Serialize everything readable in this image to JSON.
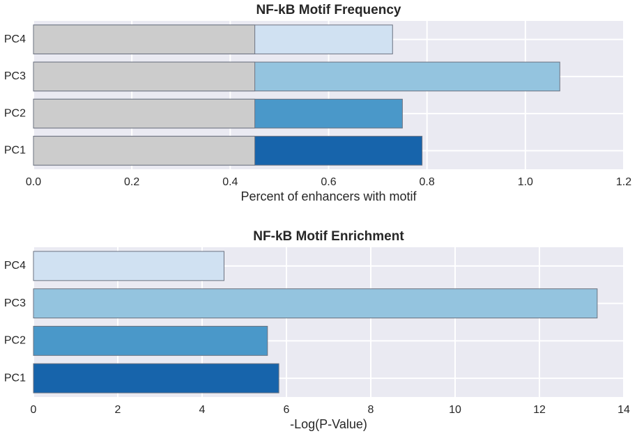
{
  "chart_data": [
    {
      "type": "bar",
      "orientation": "horizontal",
      "title": "NF-kB Motif Frequency",
      "x_label": "Percent of enhancers with motif",
      "categories": [
        "PC1",
        "PC2",
        "PC3",
        "PC4"
      ],
      "series": [
        {
          "colors": [
            "#1764ab",
            "#4a98c9",
            "#94c4df",
            "#d0e1f2"
          ],
          "values": [
            0.79,
            0.75,
            1.07,
            0.73
          ]
        },
        {
          "color": "#cccccc",
          "values": [
            0.45,
            0.45,
            0.45,
            0.45
          ]
        }
      ],
      "xlim": [
        0,
        1.2
      ],
      "xticks": [
        {
          "value": 0,
          "label": "0.0"
        },
        0.2,
        0.4,
        0.6,
        0.8,
        {
          "value": 1,
          "label": "1.0"
        },
        1.2
      ],
      "grid": true
    },
    {
      "type": "bar",
      "orientation": "horizontal",
      "title": "NF-kB Motif Enrichment",
      "x_label": "-Log(P-Value)",
      "categories": [
        "PC1",
        "PC2",
        "PC3",
        "PC4"
      ],
      "series": [
        {
          "colors": [
            "#1764ab",
            "#4a98c9",
            "#94c4df",
            "#d0e1f2"
          ],
          "values": [
            5.82,
            5.55,
            13.37,
            4.52
          ]
        }
      ],
      "xlim": [
        0,
        14
      ],
      "xticks": [
        0,
        2,
        4,
        6,
        8,
        10,
        12,
        14
      ],
      "grid": true
    }
  ]
}
